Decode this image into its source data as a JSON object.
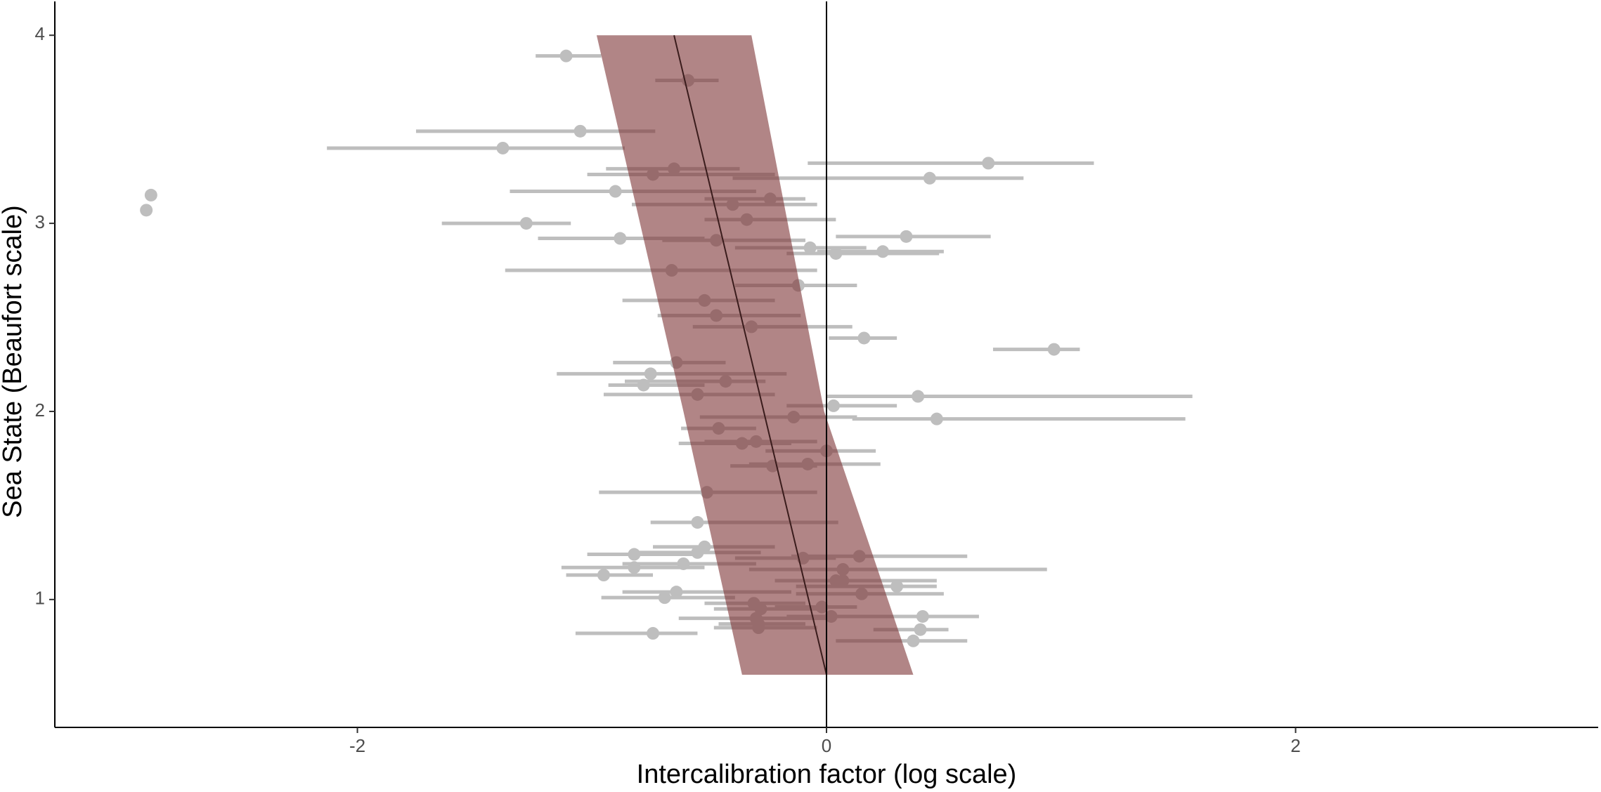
{
  "chart_data": {
    "type": "errorbar-scatter",
    "xlabel": "Intercalibration factor (log scale)",
    "ylabel": "Sea State (Beaufort scale)",
    "xlim": [
      -3.29,
      3.29
    ],
    "ylim": [
      0.32,
      4.18
    ],
    "xticks": [
      -2,
      0,
      2
    ],
    "yticks": [
      1,
      2,
      3,
      4
    ],
    "vline": 0,
    "points": {
      "color": "#bebebe",
      "x": [
        -1.11,
        -0.59,
        -1.05,
        -1.38,
        0.69,
        -0.65,
        -0.74,
        0.44,
        -2.88,
        -2.9,
        -0.9,
        -0.24,
        -0.4,
        -0.34,
        -1.28,
        0.34,
        -0.88,
        -0.47,
        -0.07,
        0.04,
        0.24,
        -0.66,
        -0.12,
        -0.52,
        -0.47,
        -0.32,
        0.16,
        0.97,
        -0.64,
        -0.75,
        -0.43,
        -0.78,
        -0.55,
        0.39,
        0.03,
        0.47,
        -0.14,
        -0.46,
        -0.3,
        -0.36,
        0.0,
        -0.08,
        -0.23,
        -0.51,
        -0.55,
        -0.52,
        -0.55,
        -0.82,
        0.14,
        -0.1,
        -0.61,
        0.07,
        -0.82,
        -0.95,
        0.04,
        0.07,
        0.3,
        -0.64,
        0.15,
        -0.69,
        -0.31,
        -0.28,
        -0.02,
        0.02,
        0.41,
        -0.3,
        -0.29,
        -0.29,
        0.4,
        0.37,
        -0.74
      ],
      "y": [
        3.89,
        3.76,
        3.49,
        3.4,
        3.32,
        3.29,
        3.26,
        3.24,
        3.15,
        3.07,
        3.17,
        3.13,
        3.1,
        3.02,
        3.0,
        2.93,
        2.92,
        2.91,
        2.87,
        2.84,
        2.85,
        2.75,
        2.67,
        2.59,
        2.51,
        2.45,
        2.39,
        2.33,
        2.26,
        2.2,
        2.16,
        2.14,
        2.09,
        2.08,
        2.03,
        1.96,
        1.97,
        1.91,
        1.84,
        1.83,
        1.79,
        1.72,
        1.71,
        1.57,
        1.41,
        1.28,
        1.25,
        1.24,
        1.23,
        1.22,
        1.19,
        1.16,
        1.17,
        1.13,
        1.1,
        1.1,
        1.07,
        1.04,
        1.03,
        1.01,
        0.98,
        0.95,
        0.96,
        0.91,
        0.91,
        0.9,
        0.87,
        0.85,
        0.84,
        0.78,
        0.82
      ],
      "xmin": [
        -1.24,
        -0.73,
        -1.75,
        -2.13,
        -0.08,
        -0.94,
        -1.02,
        -0.4,
        null,
        null,
        -1.35,
        -0.52,
        -0.83,
        -0.52,
        -1.64,
        0.04,
        -1.23,
        -0.7,
        -0.39,
        -0.17,
        -0.04,
        -1.37,
        -0.39,
        -0.87,
        -0.72,
        -0.57,
        0.01,
        0.71,
        -0.91,
        -1.15,
        -0.86,
        -0.93,
        -0.95,
        0.0,
        -0.17,
        0.11,
        -0.54,
        -0.62,
        -0.52,
        -0.63,
        -0.26,
        -0.33,
        -0.41,
        -0.97,
        -0.75,
        -0.74,
        -0.8,
        -1.02,
        -0.15,
        -0.39,
        -0.87,
        -0.33,
        -1.13,
        -1.11,
        -0.17,
        -0.22,
        -0.13,
        -0.87,
        -0.13,
        -0.96,
        -0.52,
        -0.48,
        -0.22,
        -0.17,
        0.24,
        -0.63,
        -0.46,
        -0.48,
        0.2,
        0.04,
        -1.07
      ],
      "xmax": [
        -0.96,
        -0.46,
        -0.73,
        -0.86,
        1.14,
        -0.37,
        -0.22,
        0.84,
        null,
        null,
        -0.3,
        -0.09,
        -0.04,
        0.04,
        -1.09,
        0.7,
        -0.52,
        -0.09,
        0.17,
        0.48,
        0.5,
        -0.04,
        0.13,
        -0.22,
        -0.11,
        0.11,
        0.3,
        1.08,
        -0.43,
        -0.17,
        -0.26,
        -0.52,
        -0.22,
        1.56,
        0.3,
        1.53,
        0.13,
        -0.3,
        -0.04,
        -0.15,
        0.21,
        0.23,
        -0.04,
        -0.04,
        0.05,
        -0.22,
        -0.28,
        -0.57,
        0.6,
        0.04,
        -0.3,
        0.94,
        -0.52,
        -0.74,
        0.26,
        0.47,
        0.47,
        -0.15,
        0.5,
        -0.39,
        -0.09,
        -0.04,
        0.13,
        0.26,
        0.65,
        0.0,
        -0.09,
        -0.04,
        0.52,
        0.6,
        -0.55
      ]
    },
    "band": {
      "color": "#7d3335",
      "y": [
        0.6,
        2,
        4
      ],
      "xmin": [
        -0.36,
        -0.61,
        -0.98
      ],
      "xmax": [
        0.37,
        -0.01,
        -0.32
      ]
    },
    "line": {
      "color": "#3a1c1c",
      "x": [
        0,
        -0.65
      ],
      "y": [
        0.6,
        4
      ]
    }
  }
}
